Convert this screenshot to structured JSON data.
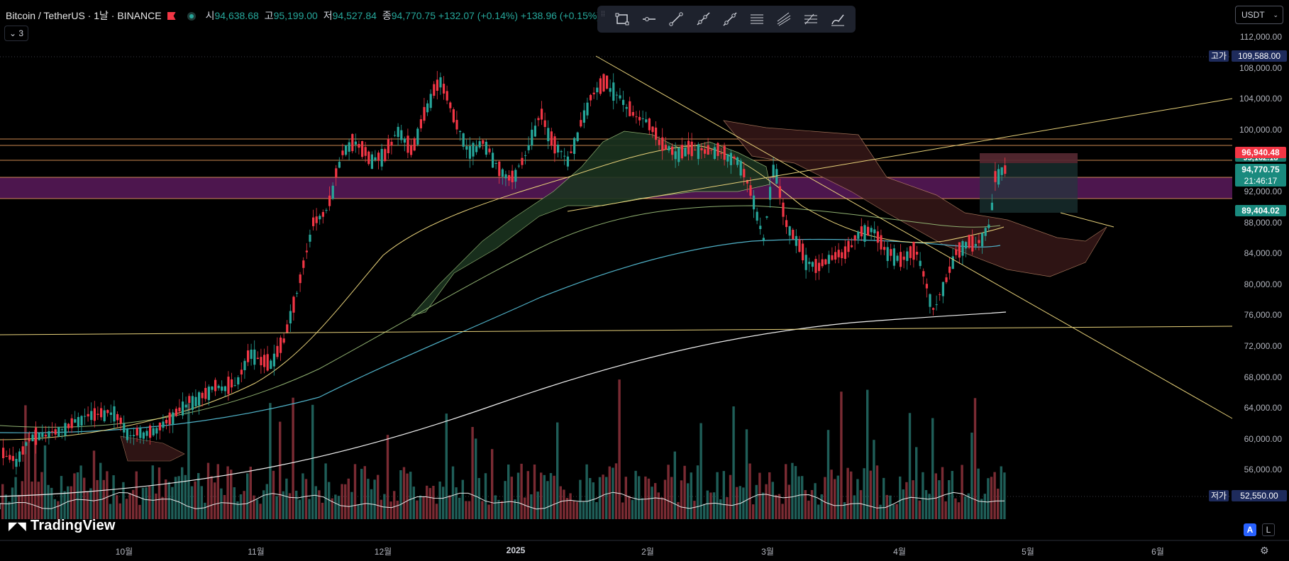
{
  "header": {
    "symbol": "Bitcoin / TetherUS · 1날 · BINANCE",
    "open_label": "시",
    "open": "94,638.68",
    "high_label": "고",
    "high": "95,199.00",
    "low_label": "저",
    "low": "94,527.84",
    "close_label": "종",
    "close": "94,770.75",
    "change": "+132.07 (+0.14%)",
    "change2": "+138.96 (+0.15%)"
  },
  "indicators_count": "3",
  "toolbar": {
    "tools": [
      "rectangle-icon",
      "horizontal-ray-icon",
      "trend-line-icon",
      "ray-icon",
      "extended-line-icon",
      "horizontal-lines-icon",
      "parallel-channel-icon",
      "fib-retracement-icon",
      "brush-icon"
    ]
  },
  "currency": "USDT",
  "price_axis": {
    "labels": [
      {
        "text": "112,000.00",
        "price": 112000
      },
      {
        "text": "108,000.00",
        "price": 108000
      },
      {
        "text": "104,000.00",
        "price": 104000
      },
      {
        "text": "100,000.00",
        "price": 100000
      },
      {
        "text": "92,000.00",
        "price": 92000
      },
      {
        "text": "88,000.00",
        "price": 88000
      },
      {
        "text": "84,000.00",
        "price": 84000
      },
      {
        "text": "80,000.00",
        "price": 80000
      },
      {
        "text": "76,000.00",
        "price": 76000
      },
      {
        "text": "72,000.00",
        "price": 72000
      },
      {
        "text": "68,000.00",
        "price": 68000
      },
      {
        "text": "64,000.00",
        "price": 64000
      },
      {
        "text": "60,000.00",
        "price": 60000
      },
      {
        "text": "56,000.00",
        "price": 56000
      }
    ],
    "high": {
      "label": "고가",
      "value": "109,588.00"
    },
    "low": {
      "label": "저가",
      "value": "52,550.00"
    },
    "tag_red": "96,940.48",
    "tag_hidden": "95,162.18",
    "tag_last": "94,770.75",
    "tag_countdown": "21:46:17",
    "tag_target": "89,404.02"
  },
  "time_axis": [
    {
      "text": "10월",
      "bold": false
    },
    {
      "text": "11월",
      "bold": false
    },
    {
      "text": "12월",
      "bold": false
    },
    {
      "text": "2025",
      "bold": true
    },
    {
      "text": "2월",
      "bold": false
    },
    {
      "text": "3월",
      "bold": false
    },
    {
      "text": "4월",
      "bold": false
    },
    {
      "text": "5월",
      "bold": false
    },
    {
      "text": "6월",
      "bold": false
    }
  ],
  "logo": "TradingView",
  "mode_auto": "A",
  "mode_log": "L",
  "colors": {
    "up": "#26a69a",
    "down": "#f23645",
    "background": "#000000",
    "trendline": "#e8d27a",
    "ema_slow": "#ffffff",
    "ema_mid": "#4fb0c6",
    "zone": "#6b1f6b"
  }
}
